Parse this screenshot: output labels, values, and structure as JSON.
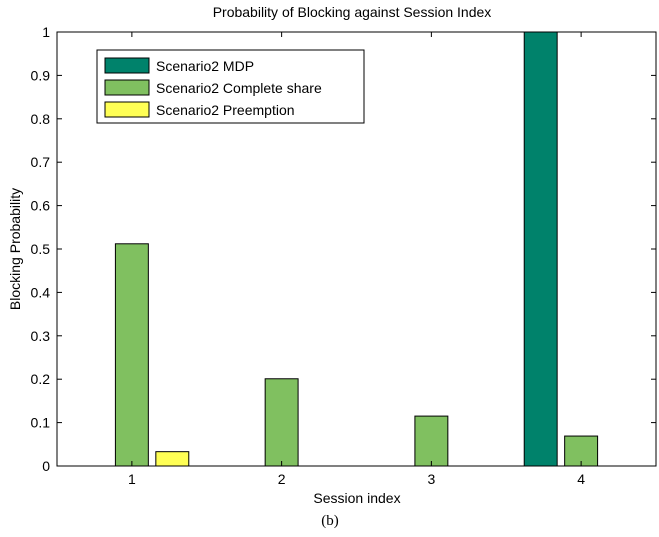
{
  "chart_data": {
    "type": "bar",
    "title": "Probability of Blocking against Session Index",
    "xlabel": "Session index",
    "ylabel": "Blocking Probability",
    "caption": "(b)",
    "categories": [
      "1",
      "2",
      "3",
      "4"
    ],
    "xlim": [
      0.5,
      4.5
    ],
    "ylim": [
      0,
      1
    ],
    "yticks": [
      "0",
      "0.1",
      "0.2",
      "0.3",
      "0.4",
      "0.5",
      "0.6",
      "0.7",
      "0.8",
      "0.9",
      "1"
    ],
    "grid": false,
    "legend_position": "top-left",
    "series": [
      {
        "name": "Scenario2 MDP",
        "color": "#00826b",
        "values": [
          0,
          0,
          0,
          1.0
        ]
      },
      {
        "name": "Scenario2 Complete share",
        "color": "#80c060",
        "values": [
          0.512,
          0.201,
          0.115,
          0.069
        ]
      },
      {
        "name": "Scenario2 Preemption",
        "color": "#ffff55",
        "values": [
          0.033,
          0,
          0,
          0
        ]
      }
    ]
  }
}
